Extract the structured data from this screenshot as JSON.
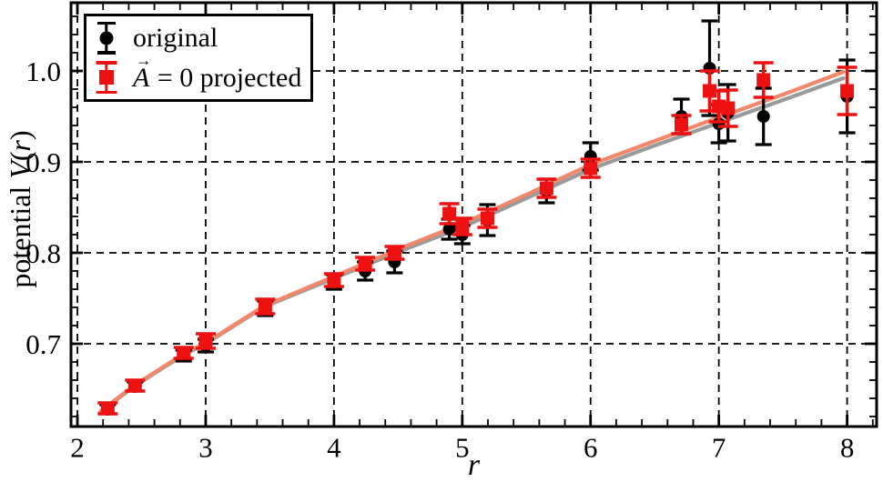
{
  "figure": {
    "background": "#ffffff"
  },
  "axis_labels": {
    "x": "r",
    "y_parts": [
      "potential ",
      "V",
      "(",
      "r",
      ")"
    ]
  },
  "legend": {
    "items": [
      {
        "id": "original",
        "label": "original",
        "marker": "circle",
        "color": "#000000"
      },
      {
        "id": "projected",
        "math": "A",
        "arrow": "→",
        "rest": " = 0 projected",
        "marker": "square",
        "color": "#ee1111"
      }
    ]
  },
  "chart_data": {
    "type": "scatter",
    "title": "",
    "xlabel": "r",
    "ylabel": "potential V(r)",
    "xlim": [
      1.95,
      8.23
    ],
    "ylim": [
      0.609,
      1.075
    ],
    "xticks": [
      2,
      3,
      4,
      5,
      6,
      7,
      8
    ],
    "yticks": [
      0.7,
      0.8,
      0.9,
      1.0
    ],
    "x_minor_step": 0.2,
    "y_minor_step": 0.02,
    "grid": {
      "show": true,
      "style": "dashed",
      "color": "#000000",
      "at": "major-ticks"
    },
    "legend_entries": [
      "original",
      "A⃗ = 0 projected"
    ],
    "legend_position": "upper-left",
    "series": [
      {
        "name": "original",
        "marker": "circle",
        "color": "#000000",
        "cap_halfwidth": 9,
        "points": [
          {
            "r": 2.236,
            "v": 0.628,
            "e": 0.005
          },
          {
            "r": 2.449,
            "v": 0.653,
            "e": 0.005
          },
          {
            "r": 2.828,
            "v": 0.687,
            "e": 0.006
          },
          {
            "r": 3.0,
            "v": 0.698,
            "e": 0.007
          },
          {
            "r": 3.464,
            "v": 0.739,
            "e": 0.008
          },
          {
            "r": 4.0,
            "v": 0.768,
            "e": 0.008
          },
          {
            "r": 4.243,
            "v": 0.78,
            "e": 0.01
          },
          {
            "r": 4.472,
            "v": 0.79,
            "e": 0.012
          },
          {
            "r": 4.899,
            "v": 0.826,
            "e": 0.011
          },
          {
            "r": 5.0,
            "v": 0.82,
            "e": 0.01
          },
          {
            "r": 5.196,
            "v": 0.836,
            "e": 0.017
          },
          {
            "r": 5.657,
            "v": 0.868,
            "e": 0.013
          },
          {
            "r": 6.0,
            "v": 0.906,
            "e": 0.015
          },
          {
            "r": 6.708,
            "v": 0.95,
            "e": 0.019
          },
          {
            "r": 6.928,
            "v": 1.003,
            "e": 0.052
          },
          {
            "r": 7.0,
            "v": 0.942,
            "e": 0.021
          },
          {
            "r": 7.071,
            "v": 0.954,
            "e": 0.031
          },
          {
            "r": 7.348,
            "v": 0.95,
            "e": 0.031
          },
          {
            "r": 8.0,
            "v": 0.972,
            "e": 0.04
          }
        ]
      },
      {
        "name": "A=0 projected",
        "marker": "square",
        "color": "#ee1111",
        "cap_halfwidth": 11,
        "points": [
          {
            "r": 2.236,
            "v": 0.629,
            "e": 0.006
          },
          {
            "r": 2.449,
            "v": 0.654,
            "e": 0.006
          },
          {
            "r": 2.828,
            "v": 0.69,
            "e": 0.006
          },
          {
            "r": 3.0,
            "v": 0.703,
            "e": 0.008
          },
          {
            "r": 3.464,
            "v": 0.741,
            "e": 0.008
          },
          {
            "r": 4.0,
            "v": 0.77,
            "e": 0.007
          },
          {
            "r": 4.243,
            "v": 0.788,
            "e": 0.007
          },
          {
            "r": 4.472,
            "v": 0.8,
            "e": 0.007
          },
          {
            "r": 4.899,
            "v": 0.843,
            "e": 0.011
          },
          {
            "r": 5.0,
            "v": 0.829,
            "e": 0.009
          },
          {
            "r": 5.196,
            "v": 0.838,
            "e": 0.01
          },
          {
            "r": 5.657,
            "v": 0.871,
            "e": 0.01
          },
          {
            "r": 6.0,
            "v": 0.893,
            "e": 0.01
          },
          {
            "r": 6.708,
            "v": 0.941,
            "e": 0.01
          },
          {
            "r": 6.928,
            "v": 0.978,
            "e": 0.022
          },
          {
            "r": 7.0,
            "v": 0.961,
            "e": 0.017
          },
          {
            "r": 7.071,
            "v": 0.959,
            "e": 0.02
          },
          {
            "r": 7.348,
            "v": 0.99,
            "e": 0.019
          },
          {
            "r": 8.0,
            "v": 0.978,
            "e": 0.026
          }
        ]
      }
    ],
    "fit_curves": [
      {
        "name": "original-fit",
        "color": "#9a9a9a",
        "width": 4.2,
        "points": [
          [
            2.18,
            0.625
          ],
          [
            2.45,
            0.654
          ],
          [
            2.83,
            0.688
          ],
          [
            3.0,
            0.7
          ],
          [
            3.46,
            0.741
          ],
          [
            4.0,
            0.772
          ],
          [
            4.5,
            0.801
          ],
          [
            5.0,
            0.828
          ],
          [
            5.5,
            0.86
          ],
          [
            6.0,
            0.892
          ],
          [
            6.5,
            0.918
          ],
          [
            7.0,
            0.943
          ],
          [
            7.5,
            0.968
          ],
          [
            7.97,
            0.992
          ]
        ]
      },
      {
        "name": "projected-fit",
        "color": "#f2876a",
        "width": 4.2,
        "points": [
          [
            2.18,
            0.626
          ],
          [
            2.45,
            0.655
          ],
          [
            2.83,
            0.689
          ],
          [
            3.0,
            0.701
          ],
          [
            3.46,
            0.742
          ],
          [
            4.0,
            0.774
          ],
          [
            4.5,
            0.804
          ],
          [
            5.0,
            0.832
          ],
          [
            5.5,
            0.864
          ],
          [
            6.0,
            0.897
          ],
          [
            6.5,
            0.923
          ],
          [
            7.0,
            0.949
          ],
          [
            7.5,
            0.974
          ],
          [
            7.97,
            0.999
          ]
        ]
      }
    ]
  }
}
